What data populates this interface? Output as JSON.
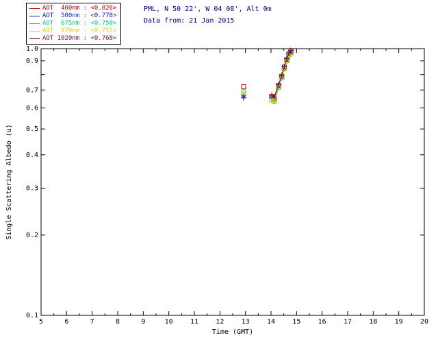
{
  "header": {
    "site": "PML, N 50 22', W 04 08', Alt 0m",
    "data_from": "Data from: 21 Jan 2015",
    "color": "#000080"
  },
  "legend": {
    "position": "top-left",
    "entries": [
      {
        "label": "AOT  400nm : <0.826>",
        "color": "#b80000"
      },
      {
        "label": "AOT  500nm : <0.778>",
        "color": "#1a1acc"
      },
      {
        "label": "AOT  675nm : <0.750>",
        "color": "#00cc7a"
      },
      {
        "label": "AOT  870nm : <0.755>",
        "color": "#d8d800"
      },
      {
        "label": "AOT 1020nm : <0.768>",
        "color": "#6e1040"
      }
    ]
  },
  "chart_data": {
    "type": "scatter",
    "title": "",
    "xlabel": "Time (GMT)",
    "ylabel": "Single Scattering Albedo (u)",
    "xlim": [
      5,
      20
    ],
    "ylim": [
      0.1,
      1.0
    ],
    "y_scale": "log",
    "grid": false,
    "legend_position": "top-left",
    "x_ticks": [
      5,
      6,
      7,
      8,
      9,
      10,
      11,
      12,
      13,
      14,
      15,
      16,
      17,
      18,
      19,
      20
    ],
    "y_ticks": [
      0.1,
      0.2,
      0.3,
      0.4,
      0.5,
      0.6,
      0.7,
      0.8,
      0.9,
      1.0
    ],
    "y_tick_labels": [
      "0.1",
      "0.2",
      "0.3",
      "0.4",
      "0.5",
      "0.6",
      "0.7",
      "",
      "0.9",
      "1.0"
    ],
    "x": [
      12.93,
      14.03,
      14.12,
      14.3,
      14.42,
      14.52,
      14.62,
      14.7,
      14.78
    ],
    "line_from_index": 1,
    "series": [
      {
        "name": "AOT 400nm",
        "wavelength_nm": 400,
        "mean_ssa": 0.826,
        "color": "#b80000",
        "marker": "square",
        "values": [
          0.72,
          0.662,
          0.65,
          0.728,
          0.788,
          0.852,
          0.912,
          0.958,
          0.978
        ]
      },
      {
        "name": "AOT 500nm",
        "wavelength_nm": 500,
        "mean_ssa": 0.778,
        "color": "#1a1acc",
        "marker": "asterisk",
        "values": [
          0.665,
          0.655,
          0.643,
          0.722,
          0.782,
          0.845,
          0.905,
          0.952,
          0.968
        ]
      },
      {
        "name": "AOT 675nm",
        "wavelength_nm": 675,
        "mean_ssa": 0.75,
        "color": "#00cc7a",
        "marker": "circle",
        "values": [
          0.693,
          0.641,
          0.633,
          0.714,
          0.775,
          0.838,
          0.898,
          0.945,
          0.96
        ]
      },
      {
        "name": "AOT 870nm",
        "wavelength_nm": 870,
        "mean_ssa": 0.755,
        "color": "#d8d800",
        "marker": "triangle",
        "values": [
          0.684,
          0.646,
          0.638,
          0.718,
          0.778,
          0.842,
          0.902,
          0.948,
          0.965
        ]
      },
      {
        "name": "AOT 1020nm",
        "wavelength_nm": 1020,
        "mean_ssa": 0.768,
        "color": "#6e1040",
        "marker": "plus",
        "values": [
          0.654,
          0.669,
          0.658,
          0.734,
          0.795,
          0.858,
          0.918,
          0.962,
          0.985
        ]
      }
    ]
  }
}
